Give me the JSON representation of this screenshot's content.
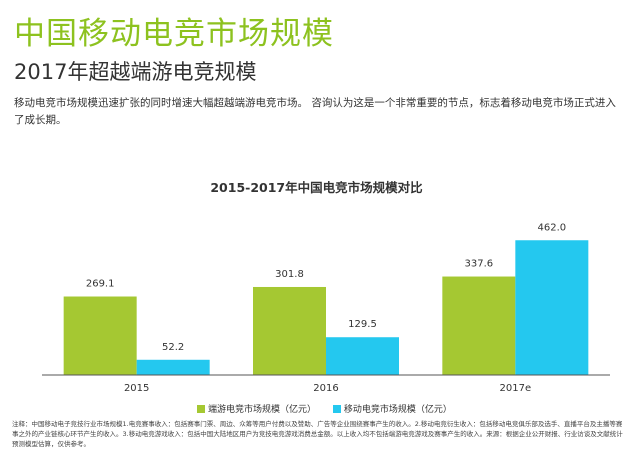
{
  "header": {
    "title": "中国移动电竞市场规模",
    "subtitle": "2017年超越端游电竞规模",
    "intro": "移动电竞市场规模迅速扩张的同时增速大幅超越端游电竞市场。 咨询认为这是一个非常重要的节点，标志着移动电竞市场正式进入了成长期。"
  },
  "chart_data": {
    "type": "bar",
    "title": "2015-2017年中国电竞市场规模对比",
    "categories": [
      "2015",
      "2016",
      "2017e"
    ],
    "series": [
      {
        "name": "端游电竞市场规模（亿元）",
        "color": "#a5c832",
        "values": [
          269.1,
          301.8,
          337.6
        ]
      },
      {
        "name": "移动电竞市场规模（亿元）",
        "color": "#24c8ef",
        "values": [
          52.2,
          129.5,
          462.0
        ]
      }
    ],
    "value_labels": [
      [
        "269.1",
        "301.8",
        "337.6"
      ],
      [
        "52.2",
        "129.5",
        "462.0"
      ]
    ],
    "ylim": [
      0,
      480
    ],
    "grid": false,
    "legend_position": "bottom"
  },
  "footnote": "注释：中国移动电子竞技行业市场规模1.电竞赛事收入：包括赛事门票、周边、众筹等用户付费以及赞助、广告等企业围绕赛事产生的收入。2.移动电竞衍生收入：包括移动电竞俱乐部及选手、直播平台及主播等赛事之外的产业链核心环节产生的收入。3.移动电竞游戏收入：包括中国大陆地区用户为竞技电竞游戏消费总金额。以上收入均不包括端游电竞游戏及赛事产生的收入。来源：根据企业公开财报、行业访谈及文献统计预测模型估算，仅供参考。"
}
